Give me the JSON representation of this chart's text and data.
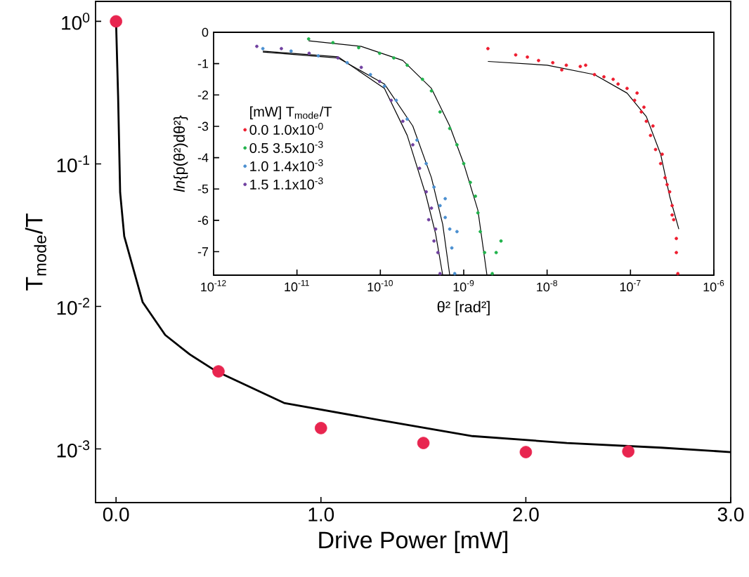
{
  "chart_data": [
    {
      "type": "scatter",
      "xlabel": "Drive Power [mW]",
      "ylabel": "T$_{mode}$/T",
      "log": "y",
      "marker": "circle",
      "xlim": [
        -0.1,
        3.0
      ],
      "ylim": [
        0.00042,
        1.38
      ],
      "xticks": [
        {
          "value": 0,
          "label": "0.0"
        },
        {
          "value": 1,
          "label": "1.0"
        },
        {
          "value": 2,
          "label": "2.0"
        },
        {
          "value": 3,
          "label": "3.0"
        }
      ],
      "yticks": [
        {
          "value": 1,
          "label": "10$^{0}$"
        },
        {
          "value": 0.1,
          "label": "10$^{-1}$"
        },
        {
          "value": 0.01,
          "label": "10$^{-2}$"
        },
        {
          "value": 0.001,
          "label": "10$^{-3}$"
        }
      ],
      "series": [
        {
          "color": "#e8254f",
          "x": [
            0,
            0.5,
            1.0,
            1.5,
            2.0,
            2.5
          ],
          "values": [
            1.0,
            0.0035,
            0.0014,
            0.0011,
            0.00095,
            0.00096
          ]
        },
        {
          "type": "line",
          "marker": "none",
          "color": "#000000",
          "x": [
            0,
            0.01,
            0.02,
            0.04,
            0.13,
            0.24,
            0.36,
            0.49,
            0.82,
            1.28,
            1.74,
            2.2,
            2.66,
            3.0
          ],
          "values": [
            1.0,
            0.3,
            0.063,
            0.031,
            0.0107,
            0.0063,
            0.0046,
            0.0035,
            0.0021,
            0.0016,
            0.00123,
            0.0011,
            0.00102,
            0.00095
          ]
        }
      ]
    },
    {
      "type": "scatter",
      "xlabel": "θ² [rad²]",
      "ylabel": "*ln*{p(θ²)dθ²}",
      "log": "x",
      "marker": "circle",
      "legend": "left",
      "legend_title": "[mW]  T$_{mode}$/T",
      "xlim": [
        1e-12,
        1e-06
      ],
      "ylim": [
        -7.75,
        0
      ],
      "xticks": [
        {
          "value": 1e-12,
          "label": "10$^{-12}$"
        },
        {
          "value": 1e-11,
          "label": "10$^{-11}$"
        },
        {
          "value": 1e-10,
          "label": "10$^{-10}$"
        },
        {
          "value": 1e-09,
          "label": "10$^{-9}$"
        },
        {
          "value": 1e-08,
          "label": "10$^{-8}$"
        },
        {
          "value": 1e-07,
          "label": "10$^{-7}$"
        },
        {
          "value": 1e-06,
          "label": "10$^{-6}$"
        }
      ],
      "yticks": [
        0,
        -1,
        -2,
        -3,
        -4,
        -5,
        -6,
        -7
      ],
      "series": [
        {
          "name": "0.0  1.0x10$^{-0}$",
          "color": "#ee1c2e",
          "x": [
            1.95e-09,
            4.2e-09,
            5.8e-09,
            7.9e-09,
            1.17e-08,
            1.5e-08,
            1.7e-08,
            2.5e-08,
            2.9e-08,
            3.7e-08,
            4.8e-08,
            6.2e-08,
            7.1e-08,
            9.1e-08,
            1.12e-07,
            1.2e-07,
            1.35e-07,
            1.45e-07,
            1.55e-07,
            1.74e-07,
            1.86e-07,
            2e-07,
            2.3e-07,
            2.4e-07,
            2.6e-07,
            2.75e-07,
            2.95e-07,
            3.16e-07,
            3.16e-07,
            3.3e-07,
            3.55e-07,
            3.55e-07,
            3.7e-07
          ],
          "values": [
            -0.52,
            -0.72,
            -0.79,
            -0.9,
            -0.97,
            -1.2,
            -1.05,
            -1.09,
            -1.05,
            -1.35,
            -1.42,
            -1.5,
            -1.65,
            -1.79,
            -2.17,
            -1.94,
            -2.54,
            -2.39,
            -2.84,
            -3.29,
            -2.99,
            -3.74,
            -4.19,
            -3.89,
            -4.64,
            -4.86,
            -5.09,
            -5.53,
            -5.83,
            -5.98,
            -6.58,
            -7.03,
            -7.7
          ]
        },
        {
          "type": "line",
          "marker": "none",
          "color": "#000000",
          "x": [
            1.95e-09,
            1e-08,
            3.7e-08,
            9.1e-08,
            1.55e-07,
            2.3e-07,
            2.95e-07,
            3.8e-07
          ],
          "values": [
            -0.93,
            -1.05,
            -1.35,
            -1.94,
            -2.69,
            -3.89,
            -5.23,
            -6.28
          ]
        },
        {
          "name": "0.5  3.5x10$^{-3}$",
          "color": "#1fb24a",
          "x": [
            1.38e-11,
            2.7e-11,
            5.5e-11,
            9.8e-11,
            1.45e-10,
            2.1e-10,
            3.2e-10,
            4.1e-10,
            5.2e-10,
            6.8e-10,
            8.3e-10,
            1e-09,
            1.2e-09,
            1.38e-09,
            1.48e-09,
            1.58e-09,
            1.78e-09,
            2.2e-09,
            2.8e-09,
            2.45e-09
          ],
          "values": [
            -0.21,
            -0.33,
            -0.49,
            -0.67,
            -0.82,
            -1.05,
            -1.5,
            -1.87,
            -2.54,
            -3.07,
            -3.59,
            -4.19,
            -4.79,
            -5.23,
            -5.76,
            -6.36,
            -7.03,
            -7.7,
            -6.66,
            -7.03
          ]
        },
        {
          "type": "line",
          "marker": "none",
          "color": "#000000",
          "x": [
            1.38e-11,
            5.9e-11,
            1.86e-10,
            4.1e-10,
            6.8e-10,
            1e-09,
            1.48e-09,
            1.9e-09
          ],
          "values": [
            -0.27,
            -0.45,
            -0.9,
            -1.79,
            -2.99,
            -4.19,
            -5.68,
            -7.75
          ]
        },
        {
          "name": "1.0  1.4x10$^{-3}$",
          "color": "#4a8fd0",
          "x": [
            3.9e-12,
            8.5e-12,
            1.8e-11,
            4e-11,
            7.6e-11,
            1.12e-10,
            1.55e-10,
            2.1e-10,
            2.75e-10,
            3.55e-10,
            4.4e-10,
            5.2e-10,
            6e-10,
            6.8e-10,
            7.2e-10,
            7.8e-10,
            6e-10,
            8.3e-10
          ],
          "values": [
            -0.52,
            -0.6,
            -0.75,
            -0.97,
            -1.35,
            -1.72,
            -2.17,
            -2.77,
            -3.44,
            -4.19,
            -4.94,
            -5.53,
            -5.91,
            -6.28,
            -6.88,
            -7.7,
            -5.31,
            -6.36
          ]
        },
        {
          "type": "line",
          "marker": "none",
          "color": "#000000",
          "x": [
            3.9e-12,
            3.1e-11,
            1.12e-10,
            2.45e-10,
            4.1e-10,
            5.6e-10,
            6.8e-10
          ],
          "values": [
            -0.63,
            -0.82,
            -1.65,
            -2.99,
            -4.64,
            -6.13,
            -7.75
          ]
        },
        {
          "name": "1.5  1.1x10$^{-3}$",
          "color": "#7040a0",
          "x": [
            3.3e-12,
            6.5e-12,
            1.4e-11,
            3.1e-11,
            5.9e-11,
            9.8e-11,
            1.35e-10,
            1.86e-10,
            2.45e-10,
            2.95e-10,
            3.55e-10,
            4.1e-10,
            4.6e-10,
            4.9e-10,
            5.2e-10,
            3.8e-10,
            4.4e-10
          ],
          "values": [
            -0.45,
            -0.52,
            -0.67,
            -0.82,
            -1.12,
            -1.57,
            -2.17,
            -2.84,
            -3.59,
            -4.34,
            -5.09,
            -5.61,
            -6.28,
            -7.03,
            -7.7,
            -5.98,
            -6.66
          ]
        },
        {
          "type": "line",
          "marker": "none",
          "color": "#000000",
          "x": [
            3.9e-12,
            3.1e-11,
            1.12e-10,
            2.1e-10,
            3.55e-10,
            4.6e-10,
            5.6e-10
          ],
          "values": [
            -0.6,
            -0.78,
            -1.79,
            -3.29,
            -5.23,
            -6.43,
            -7.75
          ]
        }
      ]
    }
  ]
}
